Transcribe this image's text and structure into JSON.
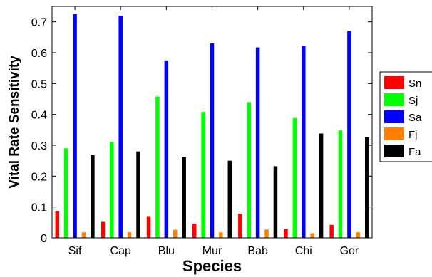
{
  "chart_data": {
    "type": "bar",
    "title": "",
    "xlabel": "Species",
    "ylabel": "Vital Rate Sensitivity",
    "categories": [
      "Sif",
      "Cap",
      "Blu",
      "Mur",
      "Bab",
      "Chi",
      "Gor"
    ],
    "ylim": [
      0,
      0.75
    ],
    "yticks": [
      0,
      0.1,
      0.2,
      0.3,
      0.4,
      0.5,
      0.6,
      0.7
    ],
    "ytick_labels": [
      "0",
      "0.1",
      "0.2",
      "0.3",
      "0.4",
      "0.5",
      "0.6",
      "0.7"
    ],
    "grid": false,
    "legend_position": "right",
    "series": [
      {
        "name": "Sn",
        "color": "#ff0000",
        "values": [
          0.087,
          0.052,
          0.068,
          0.046,
          0.078,
          0.028,
          0.042
        ]
      },
      {
        "name": "Sj",
        "color": "#00ff00",
        "values": [
          0.29,
          0.31,
          0.458,
          0.408,
          0.44,
          0.388,
          0.348
        ]
      },
      {
        "name": "Sa",
        "color": "#0000ff",
        "values": [
          0.725,
          0.72,
          0.575,
          0.63,
          0.617,
          0.622,
          0.67
        ]
      },
      {
        "name": "Fj",
        "color": "#ff8000",
        "values": [
          0.018,
          0.018,
          0.026,
          0.018,
          0.027,
          0.015,
          0.018
        ]
      },
      {
        "name": "Fa",
        "color": "#000000",
        "values": [
          0.268,
          0.28,
          0.262,
          0.25,
          0.232,
          0.338,
          0.326
        ]
      }
    ]
  }
}
